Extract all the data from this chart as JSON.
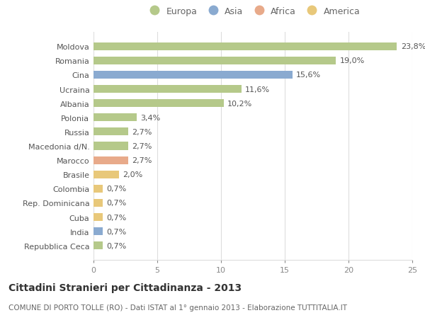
{
  "countries": [
    "Moldova",
    "Romania",
    "Cina",
    "Ucraina",
    "Albania",
    "Polonia",
    "Russia",
    "Macedonia d/N.",
    "Marocco",
    "Brasile",
    "Colombia",
    "Rep. Dominicana",
    "Cuba",
    "India",
    "Repubblica Ceca"
  ],
  "values": [
    23.8,
    19.0,
    15.6,
    11.6,
    10.2,
    3.4,
    2.7,
    2.7,
    2.7,
    2.0,
    0.7,
    0.7,
    0.7,
    0.7,
    0.7
  ],
  "labels": [
    "23,8%",
    "19,0%",
    "15,6%",
    "11,6%",
    "10,2%",
    "3,4%",
    "2,7%",
    "2,7%",
    "2,7%",
    "2,0%",
    "0,7%",
    "0,7%",
    "0,7%",
    "0,7%",
    "0,7%"
  ],
  "continents": [
    "Europa",
    "Europa",
    "Asia",
    "Europa",
    "Europa",
    "Europa",
    "Europa",
    "Europa",
    "Africa",
    "America",
    "America",
    "America",
    "America",
    "Asia",
    "Europa"
  ],
  "colors": {
    "Europa": "#b5c98a",
    "Asia": "#8aaad0",
    "Africa": "#e8aa8a",
    "America": "#e8c87a"
  },
  "legend_order": [
    "Europa",
    "Asia",
    "Africa",
    "America"
  ],
  "xlim": [
    0,
    25
  ],
  "xticks": [
    0,
    5,
    10,
    15,
    20,
    25
  ],
  "title": "Cittadini Stranieri per Cittadinanza - 2013",
  "subtitle": "COMUNE DI PORTO TOLLE (RO) - Dati ISTAT al 1° gennaio 2013 - Elaborazione TUTTITALIA.IT",
  "bg_color": "#ffffff",
  "grid_color": "#dddddd",
  "bar_height": 0.55,
  "label_fontsize": 8,
  "ytick_fontsize": 8,
  "xtick_fontsize": 8,
  "title_fontsize": 10,
  "subtitle_fontsize": 7.5
}
